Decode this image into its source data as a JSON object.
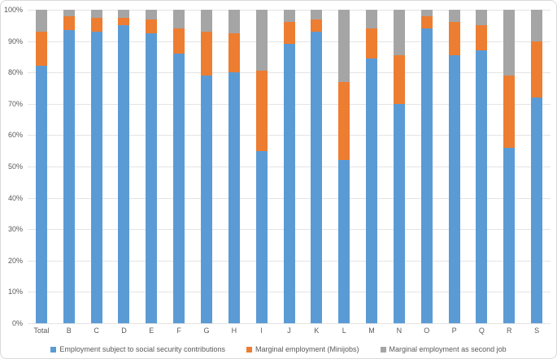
{
  "chart_data": {
    "type": "bar",
    "stacked": true,
    "stacking": "percent",
    "title": "",
    "xlabel": "",
    "ylabel": "",
    "ylim": [
      0,
      100
    ],
    "grid": true,
    "legend_position": "bottom",
    "y_ticks": [
      "100%",
      "90%",
      "80%",
      "70%",
      "60%",
      "50%",
      "40%",
      "30%",
      "20%",
      "10%",
      "0%"
    ],
    "categories": [
      "Total",
      "B",
      "C",
      "D",
      "E",
      "F",
      "G",
      "H",
      "I",
      "J",
      "K",
      "L",
      "M",
      "N",
      "O",
      "P",
      "Q",
      "R",
      "S"
    ],
    "series": [
      {
        "name": "Employment subject to social security contributions",
        "color": "#5b9bd5",
        "values": [
          82,
          93.5,
          93,
          95,
          92.5,
          86,
          79,
          80,
          55,
          89,
          93,
          52,
          84.5,
          70,
          94,
          85.5,
          87,
          56,
          72
        ]
      },
      {
        "name": "Marginal employment (Minijobs)",
        "color": "#ed7d31",
        "values": [
          11,
          4.5,
          4.5,
          2.5,
          4.5,
          8,
          14,
          12.5,
          25.5,
          7,
          4,
          25,
          9.5,
          15.5,
          4,
          10.5,
          8,
          23,
          18
        ]
      },
      {
        "name": "Marginal employment as second job",
        "color": "#a5a5a5",
        "values": [
          7,
          2,
          2.5,
          2.5,
          3,
          6,
          7,
          7.5,
          19.5,
          4,
          3,
          23,
          6,
          14.5,
          2,
          4,
          5,
          21,
          10
        ]
      }
    ]
  }
}
